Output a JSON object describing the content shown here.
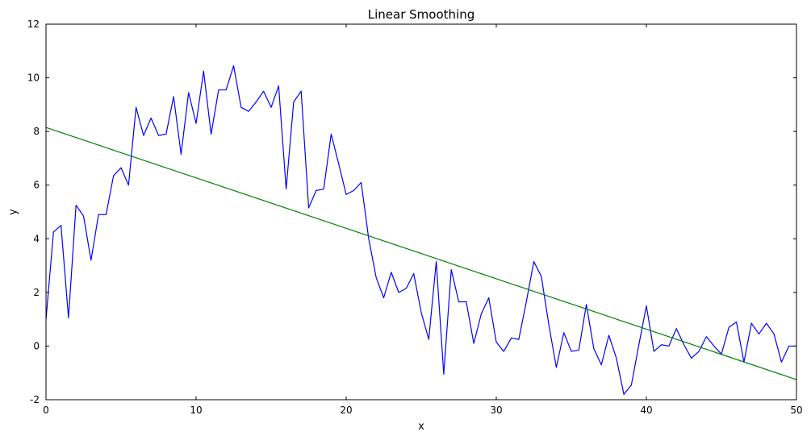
{
  "chart_data": {
    "type": "line",
    "title": "Linear Smoothing",
    "xlabel": "x",
    "ylabel": "y",
    "xlim": [
      0,
      50
    ],
    "ylim": [
      -2,
      12
    ],
    "xticks": [
      0,
      10,
      20,
      30,
      40,
      50
    ],
    "yticks": [
      -2,
      0,
      2,
      4,
      6,
      8,
      10,
      12
    ],
    "grid": false,
    "series": [
      {
        "color": "#0000ff",
        "x": [
          0.0,
          0.5,
          1.0,
          1.5,
          2.0,
          2.5,
          3.0,
          3.5,
          4.0,
          4.5,
          5.0,
          5.5,
          6.0,
          6.5,
          7.0,
          7.5,
          8.0,
          8.5,
          9.0,
          9.5,
          10.0,
          10.5,
          11.0,
          11.5,
          12.0,
          12.5,
          13.0,
          13.5,
          14.0,
          14.5,
          15.0,
          15.5,
          16.0,
          16.5,
          17.0,
          17.5,
          18.0,
          18.5,
          19.0,
          19.5,
          20.0,
          20.5,
          21.0,
          21.5,
          22.0,
          22.5,
          23.0,
          23.5,
          24.0,
          24.5,
          25.0,
          25.5,
          26.0,
          26.5,
          27.0,
          27.5,
          28.0,
          28.5,
          29.0,
          29.5,
          30.0,
          30.5,
          31.0,
          31.5,
          32.0,
          32.5,
          33.0,
          33.5,
          34.0,
          34.5,
          35.0,
          35.5,
          36.0,
          36.5,
          37.0,
          37.5,
          38.0,
          38.5,
          39.0,
          39.5,
          40.0,
          40.5,
          41.0,
          41.5,
          42.0,
          42.5,
          43.0,
          43.5,
          44.0,
          44.5,
          45.0,
          45.5,
          46.0,
          46.5,
          47.0,
          47.5,
          48.0,
          48.5,
          49.0,
          49.5,
          50.0
        ],
        "y": [
          1.0,
          4.25,
          4.5,
          1.05,
          5.25,
          4.85,
          3.2,
          4.9,
          4.9,
          6.35,
          6.65,
          6.0,
          8.9,
          7.85,
          8.5,
          7.85,
          7.9,
          9.3,
          7.15,
          9.45,
          8.3,
          10.25,
          7.9,
          9.55,
          9.55,
          10.45,
          8.9,
          8.75,
          9.1,
          9.5,
          8.9,
          9.7,
          5.85,
          9.1,
          9.5,
          5.15,
          5.8,
          5.85,
          7.9,
          6.8,
          5.65,
          5.8,
          6.1,
          4.0,
          2.55,
          1.8,
          2.75,
          2.0,
          2.15,
          2.7,
          1.25,
          0.25,
          3.15,
          -1.05,
          2.85,
          1.65,
          1.65,
          0.1,
          1.2,
          1.8,
          0.15,
          -0.2,
          0.3,
          0.25,
          1.65,
          3.15,
          2.6,
          0.8,
          -0.8,
          0.5,
          -0.2,
          -0.15,
          1.55,
          -0.1,
          -0.7,
          0.4,
          -0.45,
          -1.8,
          -1.45,
          0.05,
          1.5,
          -0.2,
          0.05,
          0.0,
          0.65,
          0.05,
          -0.45,
          -0.2,
          0.35,
          0.0,
          -0.3,
          0.7,
          0.9,
          -0.6,
          0.85,
          0.45,
          0.85,
          0.45,
          -0.6,
          0.0,
          0.0
        ]
      },
      {
        "color": "#008000",
        "x": [
          0,
          50
        ],
        "y": [
          8.15,
          -1.25
        ]
      }
    ]
  }
}
